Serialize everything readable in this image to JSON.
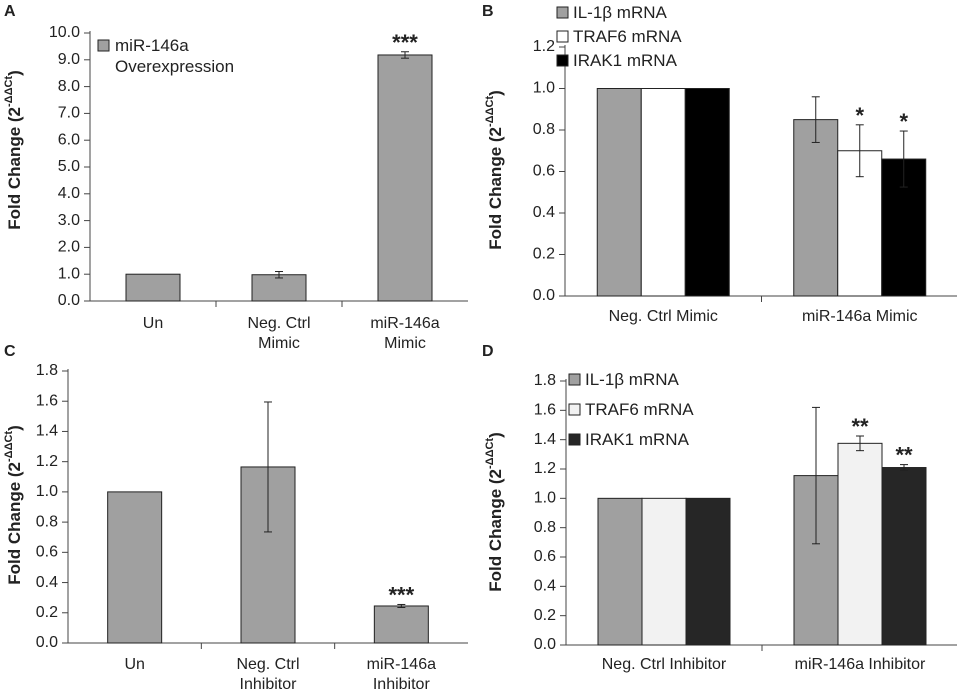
{
  "chart_data": [
    {
      "panel": "A",
      "type": "bar",
      "categories": [
        "Un",
        "Neg. Ctrl Mimic",
        "miR-146a Mimic"
      ],
      "series": [
        {
          "name": "miR-146a Overexpression",
          "color": "#a0a0a0",
          "values": [
            1.0,
            0.98,
            9.18
          ],
          "errors": [
            0,
            0.12,
            0.12
          ],
          "significance": [
            "",
            "",
            "***"
          ]
        }
      ],
      "ylabel": "Fold Change",
      "ylabel_sup": "-ΔΔCt",
      "ylim": [
        0,
        10
      ],
      "yticks": [
        "0.0",
        "1.0",
        "2.0",
        "3.0",
        "4.0",
        "5.0",
        "6.0",
        "7.0",
        "8.0",
        "9.0",
        "10.0"
      ],
      "legend_lines": [
        "miR-146a",
        "Overexpression"
      ]
    },
    {
      "panel": "B",
      "type": "bar",
      "categories": [
        "Neg. Ctrl Mimic",
        "miR-146a Mimic"
      ],
      "series": [
        {
          "name": "IL-1β mRNA",
          "color": "#a0a0a0",
          "values": [
            1.0,
            0.85
          ],
          "errors": [
            0,
            0.11
          ],
          "significance": [
            "",
            ""
          ]
        },
        {
          "name": "TRAF6 mRNA",
          "color": "#ffffff",
          "values": [
            1.0,
            0.7
          ],
          "errors": [
            0,
            0.125
          ],
          "significance": [
            "",
            "*"
          ]
        },
        {
          "name": "IRAK1 mRNA",
          "color": "#000000",
          "values": [
            1.0,
            0.66
          ],
          "errors": [
            0,
            0.135
          ],
          "significance": [
            "",
            "*"
          ]
        }
      ],
      "ylabel": "Fold Change",
      "ylabel_sup": "-ΔΔCt",
      "ylim": [
        0,
        1.2
      ],
      "yticks": [
        "0.0",
        "0.2",
        "0.4",
        "0.6",
        "0.8",
        "1.0",
        "1.2"
      ]
    },
    {
      "panel": "C",
      "type": "bar",
      "categories": [
        "Un",
        "Neg. Ctrl Inhibitor",
        "miR-146a Inhibitor"
      ],
      "series": [
        {
          "name": "Fold Change",
          "color": "#a0a0a0",
          "values": [
            1.0,
            1.165,
            0.245
          ],
          "errors": [
            0,
            0.43,
            0.01
          ],
          "significance": [
            "",
            "",
            "***"
          ]
        }
      ],
      "ylabel": "Fold Change",
      "ylabel_sup": "-ΔΔCt",
      "ylim": [
        0,
        1.8
      ],
      "yticks": [
        "0.0",
        "0.2",
        "0.4",
        "0.6",
        "0.8",
        "1.0",
        "1.2",
        "1.4",
        "1.6",
        "1.8"
      ]
    },
    {
      "panel": "D",
      "type": "bar",
      "categories": [
        "Neg. Ctrl Inhibitor",
        "miR-146a Inhibitor"
      ],
      "series": [
        {
          "name": "IL-1β mRNA",
          "color": "#a0a0a0",
          "values": [
            1.0,
            1.155
          ],
          "errors": [
            0,
            0.465
          ],
          "significance": [
            "",
            ""
          ]
        },
        {
          "name": "TRAF6 mRNA",
          "color": "#f2f2f2",
          "values": [
            1.0,
            1.375
          ],
          "errors": [
            0,
            0.05
          ],
          "significance": [
            "",
            "**"
          ]
        },
        {
          "name": "IRAK1 mRNA",
          "color": "#262626",
          "values": [
            1.0,
            1.21
          ],
          "errors": [
            0,
            0.02
          ],
          "significance": [
            "",
            "**"
          ]
        }
      ],
      "ylabel": "Fold Change",
      "ylabel_sup": "-ΔΔCt",
      "ylim": [
        0,
        1.8
      ],
      "yticks": [
        "0.0",
        "0.2",
        "0.4",
        "0.6",
        "0.8",
        "1.0",
        "1.2",
        "1.4",
        "1.6",
        "1.8"
      ]
    }
  ]
}
